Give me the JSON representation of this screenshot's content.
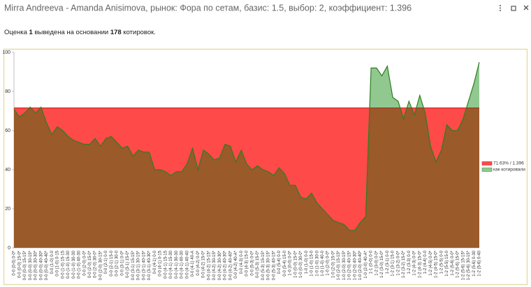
{
  "header": {
    "title": "Mirra Andreeva - Amanda Anisimova, рынок: Фора по сетам, базис: 1.5, выбор: 2, коэффициент: 1.396",
    "info": [
      {
        "text": "Оценка "
      },
      {
        "text": "1",
        "bold": true
      },
      {
        "text": " выведена на основании "
      },
      {
        "text": "178",
        "bold": true
      },
      {
        "text": " котировок."
      }
    ]
  },
  "chart_data": {
    "type": "area",
    "categories": [
      "0-0 (0-0) 0-0*",
      "0-0 (0-0) 15-0*",
      "0-0 (0-0) 15-15*",
      "0-0 (0-0) 30-15*",
      "0-0 (0-0) 30-30*",
      "0-0 (0-0) 40-30*",
      "0-0 (0-0) 40-40*",
      "0-0 (1-0) 0-0",
      "0-0 (1-0) 0-15",
      "0-0 (1-0) 15-15",
      "0-0 (1-0) 15-30",
      "0-0 (1-0) 30-30",
      "0-0 (1-0) 40-30",
      "0-0 (2-0) 0-0*",
      "0-0 (2-0) 15-0*",
      "0-0 (2-0) 30-0*",
      "0-0 (2-0) 30-15*",
      "0-0 (2-1) 0-0",
      "0-0 (2-1) 15-0",
      "0-0 (2-1) 30-0",
      "0-0 (3-1) 0-0*",
      "0-0 (3-1) 15-0*",
      "0-0 (3-1) 15-15*",
      "0-0 (3-1) 30-15*",
      "0-0 (3-1) 40-15*",
      "0-0 (3-1) 40-30*",
      "0-0 (4-1) 0-0",
      "0-0 (4-1) 0-15",
      "0-0 (4-1) 15-15",
      "0-0 (4-1) 15-30",
      "0-0 (4-1) 30-30",
      "0-0 (4-1) 40-30",
      "0-0 (4-1) 40-40",
      "0-0 (4-1) 40-A",
      "0-0 (4-2) 0-0*",
      "0-0 (4-2) 15-0*",
      "0-0 (4-2) 15-15*",
      "0-0 (4-2) 30-15*",
      "0-0 (4-2) 30-30*",
      "0-0 (4-2) 40-30*",
      "0-0 (4-2) 40-40*",
      "0-0 (4-2) 40-A*",
      "0-0 (4-3) 0-0",
      "0-0 (4-3) 15-0",
      "0-0 (5-3) 0-0*",
      "0-0 (5-3) 15-0*",
      "0-0 (5-3) 15-15*",
      "0-0 (5-3) 30-15*",
      "0-0 (5-3) 40-15*",
      "0-0 (5-4) 0-0",
      "0-0 (5-4) 15-0",
      "1-0 (0-0) 0-0*",
      "1-0 (0-0) 15-0*",
      "1-0 (0-0) 30-0*",
      "1-0 (1-0) 0-0",
      "1-0 (1-0) 15-0",
      "1-0 (1-0) 30-0",
      "1-0 (1-0) 40-0",
      "1-0 (2-0) 0-0*",
      "1-0 (2-0) 15-0*",
      "1-0 (2-0) 15-15*",
      "1-0 (2-0) 30-15*",
      "1-0 (2-0) 40-15*",
      "1-0 (2-0) 40-30*",
      "1-0 (2-0) 40-40*",
      "1-0 (2-0) 40-A*",
      "1-1 (0-0) 0-0",
      "1-2 (3-0) 0-0*",
      "1-2 (3-0) 15-0*",
      "1-2 (3-1) 0-0",
      "1-2 (3-1) 15-0",
      "1-2 (3-2) 0-0*",
      "1-2 (3-2) 15-0*",
      "1-2 (3-3) 0-0",
      "1-2 (4-3) 0-0*",
      "1-2 (4-3) 15-0*",
      "1-2 (4-4) 0-0",
      "1-2 (4-5) 0-0*",
      "1-2 (4-5) 15-0*",
      "1-2 (5-5) 0-0",
      "1-2 (5-5) 15-0",
      "1-2 (5-6) 0-0*",
      "1-2 (5-6) 15-0*",
      "1-2 (5-6) 15-15*",
      "1-2 (5-6) 30-15*",
      "1-2 (5-6) 0-30",
      "1-2 (5-6) 0-40"
    ],
    "series": [
      {
        "name": "как котировали",
        "color": "#2e7d1f",
        "fill_above": "#90c890",
        "fill_below": "#9a5a2a",
        "values": [
          71,
          67,
          69,
          72,
          69,
          72,
          64,
          58,
          62,
          60,
          57,
          55,
          54,
          53,
          53,
          56,
          52,
          56,
          57,
          54,
          51,
          52,
          47,
          50,
          49,
          49,
          40,
          40,
          39,
          37,
          39,
          39,
          43,
          51,
          40,
          50,
          48,
          45,
          46,
          53,
          52,
          44,
          50,
          43,
          40,
          42,
          40,
          39,
          37,
          41,
          38,
          32,
          32,
          26,
          25,
          28,
          23,
          20,
          17,
          14,
          13,
          12,
          9,
          9,
          13,
          16,
          92,
          92,
          88,
          93,
          77,
          75,
          66,
          75,
          68,
          78,
          69,
          52,
          44,
          50,
          63,
          60,
          60,
          66,
          75,
          84,
          95
        ]
      }
    ],
    "threshold": {
      "name": "71.63% / 1.396",
      "value": 71.63,
      "color": "#ff4a4a",
      "line_color": "#b02020"
    },
    "ylim": [
      0,
      100
    ],
    "yticks": [
      0,
      20,
      40,
      60,
      80,
      100
    ],
    "legend": "right"
  }
}
